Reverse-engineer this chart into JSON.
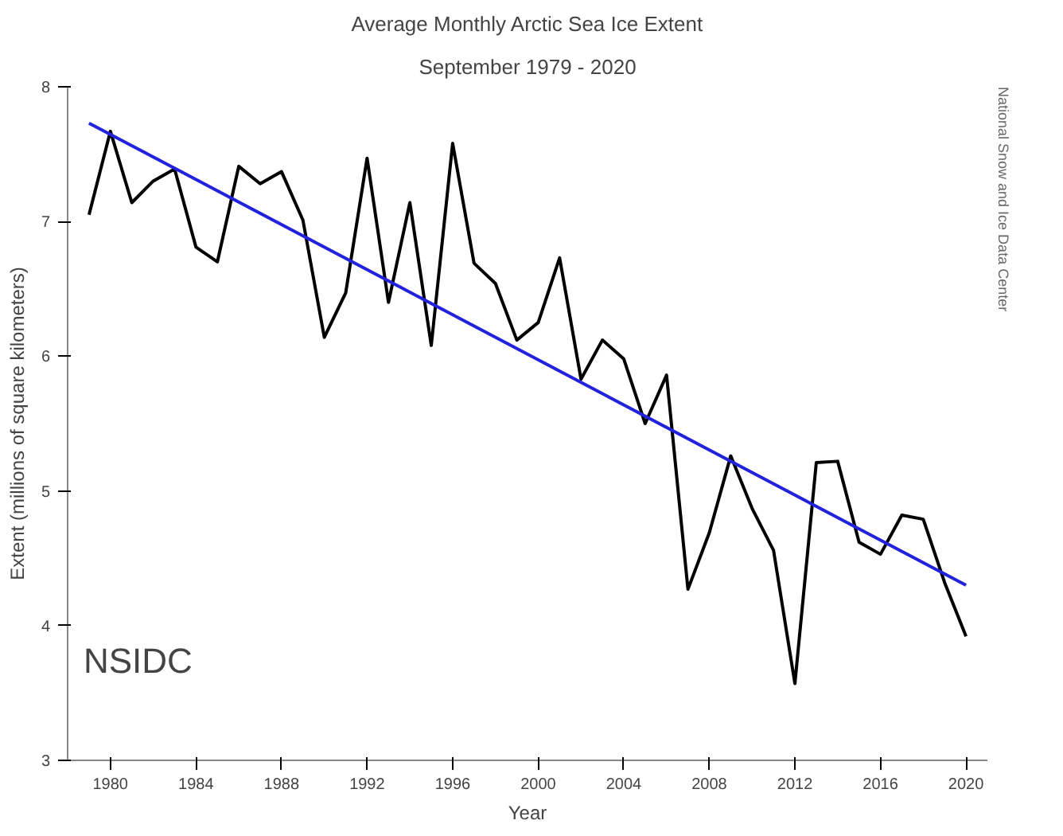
{
  "chart_data": {
    "type": "line",
    "title": "Average Monthly Arctic Sea Ice Extent",
    "subtitle": "September 1979 - 2020",
    "xlabel": "Year",
    "ylabel": "Extent (millions of square kilometers)",
    "x": [
      1979,
      1980,
      1981,
      1982,
      1983,
      1984,
      1985,
      1986,
      1987,
      1988,
      1989,
      1990,
      1991,
      1992,
      1993,
      1994,
      1995,
      1996,
      1997,
      1998,
      1999,
      2000,
      2001,
      2002,
      2003,
      2004,
      2005,
      2006,
      2007,
      2008,
      2009,
      2010,
      2011,
      2012,
      2013,
      2014,
      2015,
      2016,
      2017,
      2018,
      2019,
      2020
    ],
    "series": [
      {
        "color": "#000000",
        "values": [
          7.05,
          7.67,
          7.14,
          7.3,
          7.39,
          6.81,
          6.7,
          7.41,
          7.28,
          7.37,
          7.01,
          6.14,
          6.47,
          7.47,
          6.4,
          7.14,
          6.08,
          7.58,
          6.69,
          6.54,
          6.12,
          6.25,
          6.73,
          5.83,
          6.12,
          5.98,
          5.5,
          5.86,
          4.27,
          4.69,
          5.26,
          4.87,
          4.56,
          3.57,
          5.21,
          5.22,
          4.62,
          4.53,
          4.82,
          4.79,
          4.32,
          3.92
        ]
      },
      {
        "type": "line",
        "color": "#2222dd",
        "x": [
          1979,
          2020
        ],
        "values": [
          7.73,
          4.3
        ]
      }
    ],
    "xlim": [
      1978,
      2021
    ],
    "xticks": [
      1980,
      1984,
      1988,
      1992,
      1996,
      2000,
      2004,
      2008,
      2012,
      2016,
      2020
    ],
    "ylim": [
      3,
      8
    ],
    "yticks": [
      3,
      4,
      5,
      6,
      7,
      8
    ],
    "grid": false,
    "marker": "none",
    "line_style": "solid",
    "annotations": [
      "NSIDC",
      "National Snow and Ice Data Center"
    ]
  }
}
